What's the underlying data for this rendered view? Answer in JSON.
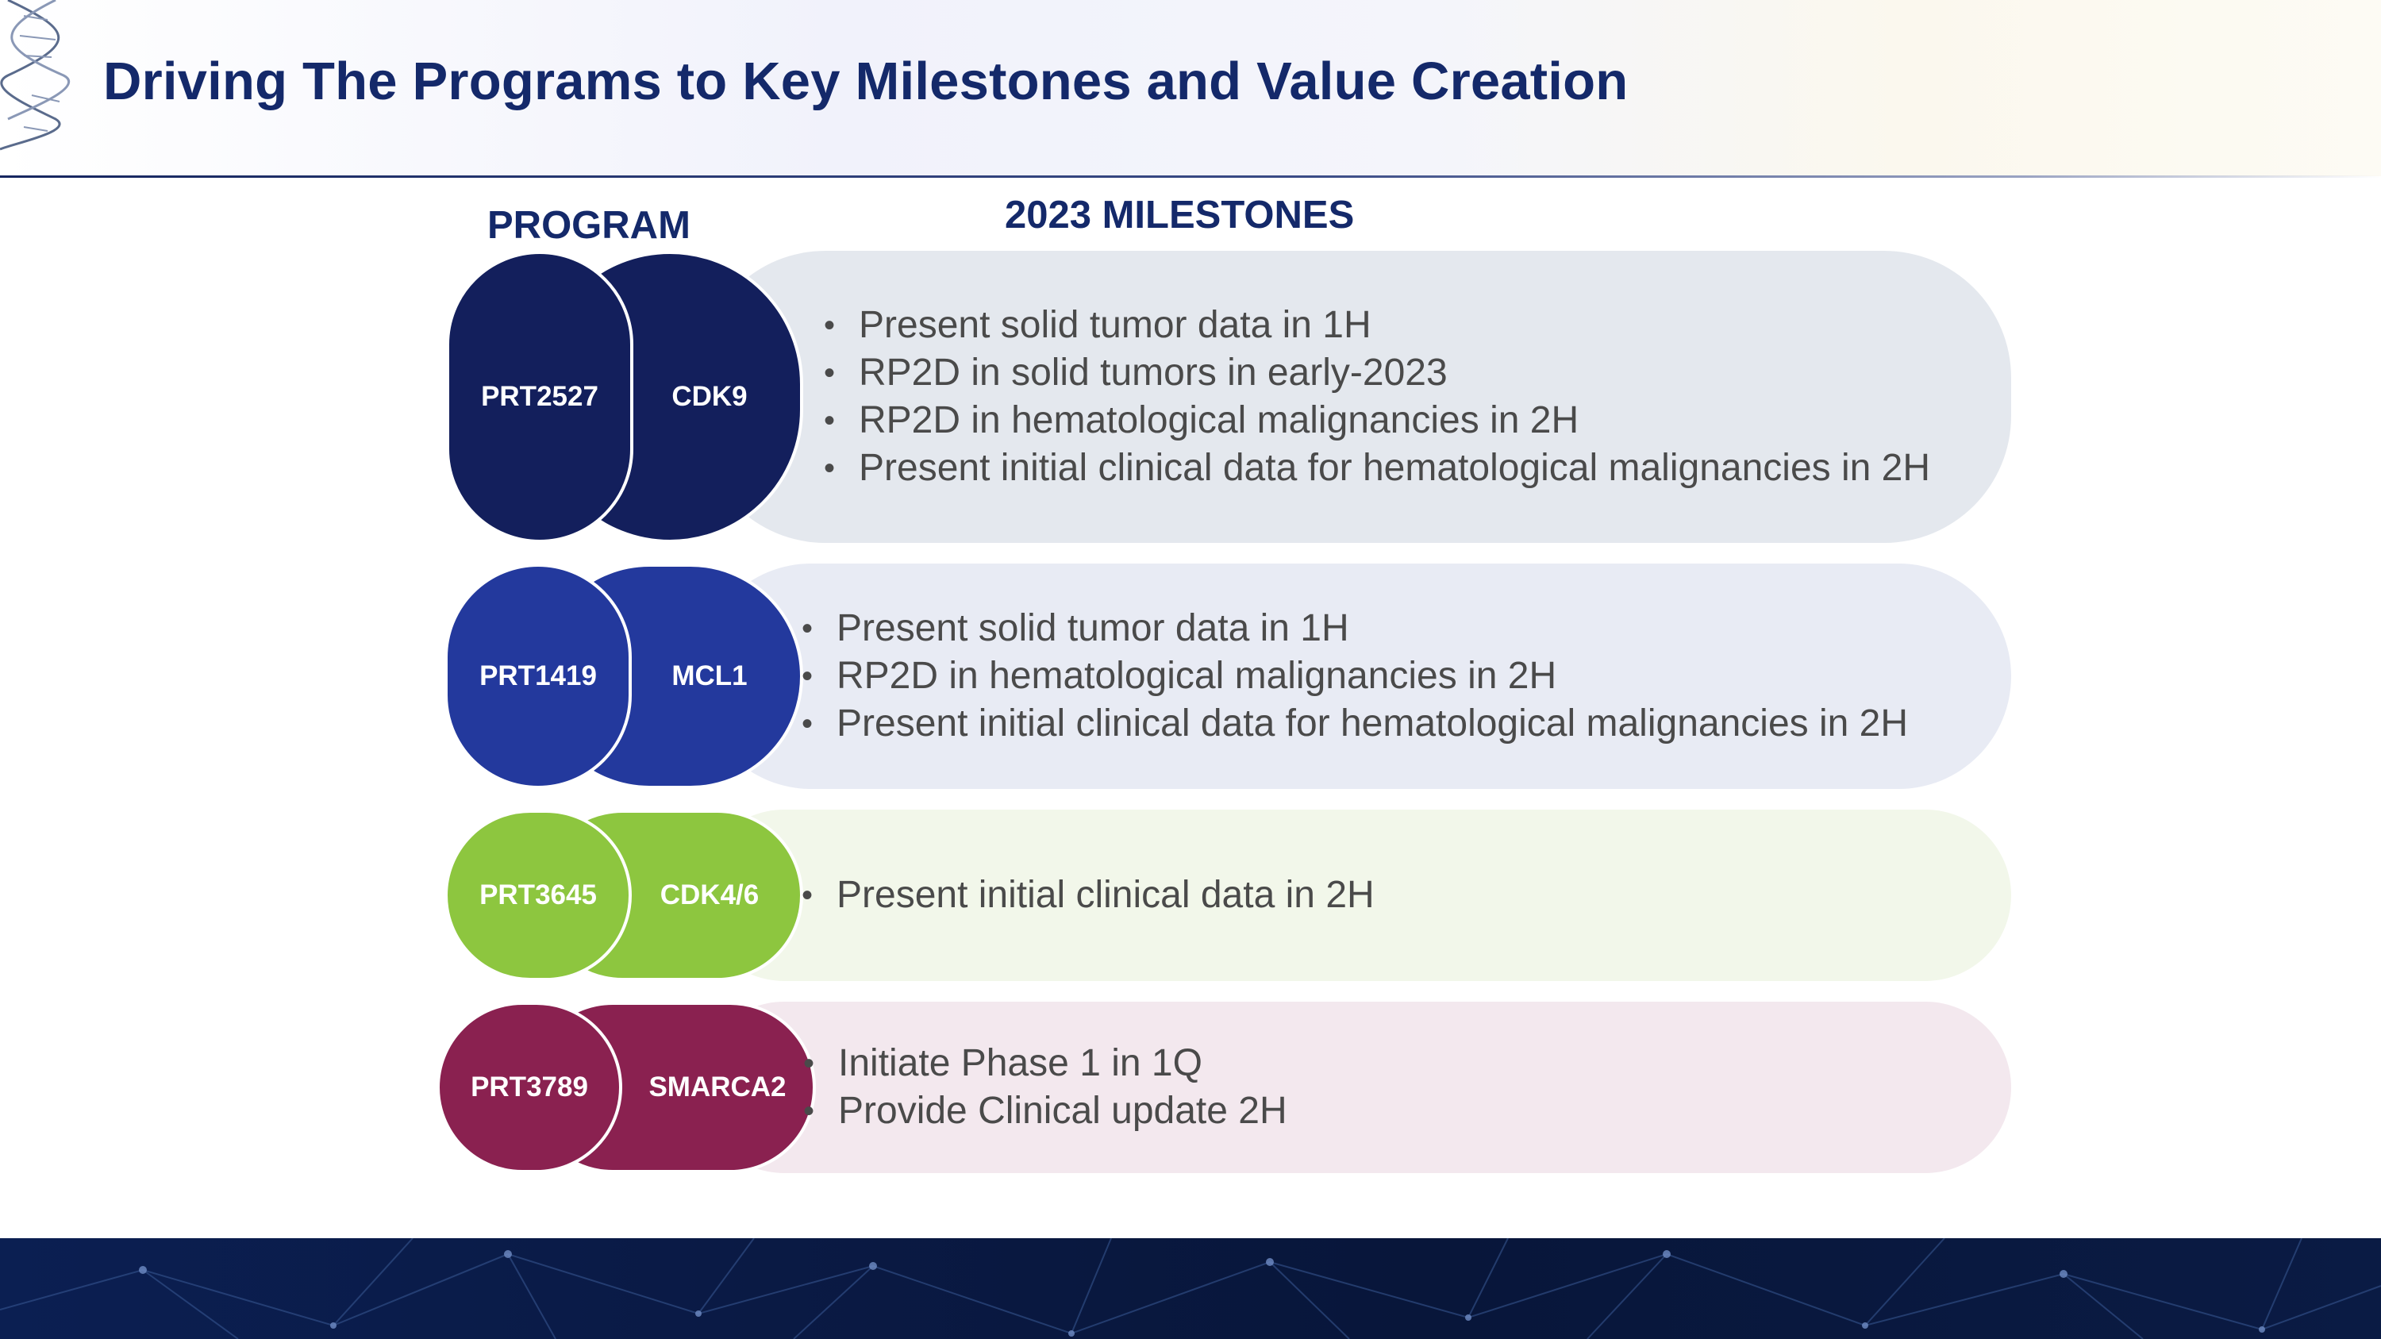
{
  "slide": {
    "title": "Driving The Programs to Key Milestones and Value Creation",
    "column_headers": {
      "program": "PROGRAM",
      "milestones": "2023 MILESTONES"
    }
  },
  "programs": [
    {
      "program_id": "PRT2527",
      "target": "CDK9",
      "colors": {
        "pill": "#131f5c",
        "band": "#e4e8ee"
      },
      "milestones": [
        "Present solid tumor data in 1H",
        "RP2D in solid tumors in early-2023",
        "RP2D in hematological malignancies in 2H",
        "Present initial clinical data for hematological malignancies in 2H"
      ]
    },
    {
      "program_id": "PRT1419",
      "target": "MCL1",
      "colors": {
        "pill": "#23399d",
        "band": "#e8ebf4"
      },
      "milestones": [
        "Present solid tumor data in 1H",
        "RP2D in hematological malignancies in 2H",
        "Present initial clinical data for hematological malignancies in 2H"
      ]
    },
    {
      "program_id": "PRT3645",
      "target": "CDK4/6",
      "colors": {
        "pill": "#8dc63f",
        "band": "#f2f7ea"
      },
      "milestones": [
        "Present initial clinical data in 2H"
      ]
    },
    {
      "program_id": "PRT3789",
      "target": "SMARCA2",
      "colors": {
        "pill": "#8a2150",
        "band": "#f3e8ee"
      },
      "milestones": [
        "Initiate Phase 1 in 1Q",
        "Provide Clinical update 2H"
      ]
    }
  ],
  "icons": {
    "logo": "dna-helix-icon"
  }
}
